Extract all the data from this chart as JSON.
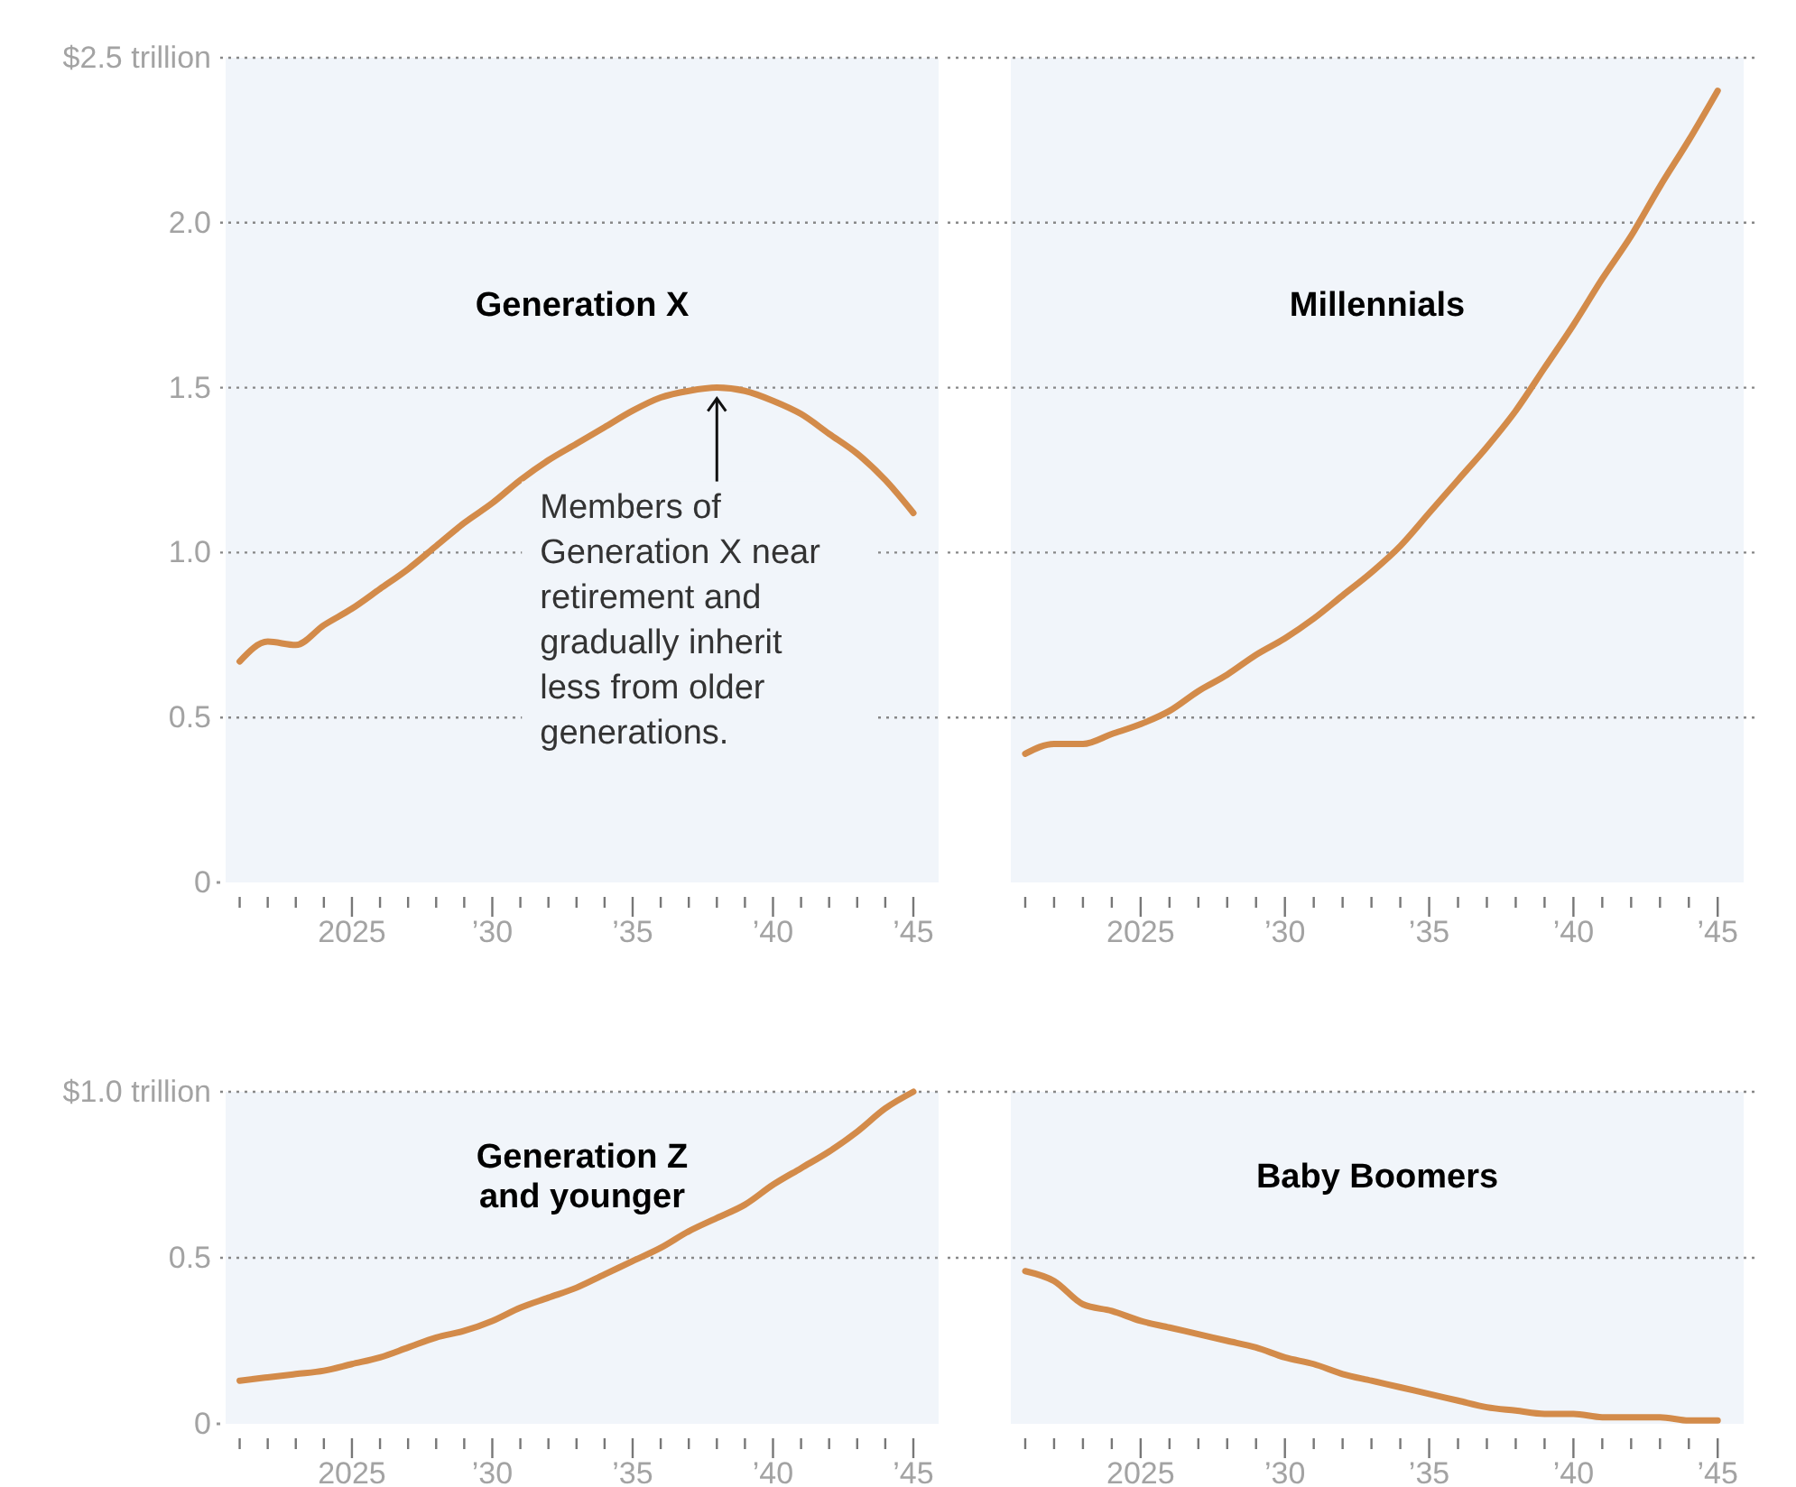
{
  "chart_data": [
    {
      "type": "line",
      "title": "Generation X",
      "x": [
        2021,
        2022,
        2023,
        2024,
        2025,
        2026,
        2027,
        2028,
        2029,
        2030,
        2031,
        2032,
        2033,
        2034,
        2035,
        2036,
        2037,
        2038,
        2039,
        2040,
        2041,
        2042,
        2043,
        2044,
        2045
      ],
      "series": [
        {
          "color": "#d38b4a",
          "values": [
            0.67,
            0.73,
            0.72,
            0.78,
            0.83,
            0.89,
            0.95,
            1.02,
            1.09,
            1.15,
            1.22,
            1.28,
            1.33,
            1.38,
            1.43,
            1.47,
            1.49,
            1.5,
            1.49,
            1.46,
            1.42,
            1.36,
            1.3,
            1.22,
            1.12
          ]
        }
      ],
      "xlim": [
        2020.5,
        2045.9
      ],
      "ylim": [
        0,
        2.5
      ],
      "xticks": [
        {
          "value": 2021,
          "label": null
        },
        {
          "value": 2022,
          "label": null
        },
        {
          "value": 2023,
          "label": null
        },
        {
          "value": 2024,
          "label": null
        },
        {
          "value": 2025,
          "label": "2025"
        },
        {
          "value": 2026,
          "label": null
        },
        {
          "value": 2027,
          "label": null
        },
        {
          "value": 2028,
          "label": null
        },
        {
          "value": 2029,
          "label": null
        },
        {
          "value": 2030,
          "label": "’30"
        },
        {
          "value": 2031,
          "label": null
        },
        {
          "value": 2032,
          "label": null
        },
        {
          "value": 2033,
          "label": null
        },
        {
          "value": 2034,
          "label": null
        },
        {
          "value": 2035,
          "label": "’35"
        },
        {
          "value": 2036,
          "label": null
        },
        {
          "value": 2037,
          "label": null
        },
        {
          "value": 2038,
          "label": null
        },
        {
          "value": 2039,
          "label": null
        },
        {
          "value": 2040,
          "label": "’40"
        },
        {
          "value": 2041,
          "label": null
        },
        {
          "value": 2042,
          "label": null
        },
        {
          "value": 2043,
          "label": null
        },
        {
          "value": 2044,
          "label": null
        },
        {
          "value": 2045,
          "label": "’45"
        }
      ],
      "yticks": [
        0,
        0.5,
        {
          "value": 1,
          "label": "1.0"
        },
        1.5,
        {
          "value": 2,
          "label": "2.0"
        },
        {
          "value": 2.5,
          "label": "$2.5 trillion"
        }
      ],
      "grid": "y",
      "annotations": [
        {
          "text": "Members of Generation X near retirement and gradually inherit less from older generations.",
          "x": 2038,
          "y": 1.5
        }
      ]
    },
    {
      "type": "line",
      "title": "Millennials",
      "x": [
        2021,
        2022,
        2023,
        2024,
        2025,
        2026,
        2027,
        2028,
        2029,
        2030,
        2031,
        2032,
        2033,
        2034,
        2035,
        2036,
        2037,
        2038,
        2039,
        2040,
        2041,
        2042,
        2043,
        2044,
        2045
      ],
      "series": [
        {
          "color": "#d38b4a",
          "values": [
            0.39,
            0.42,
            0.42,
            0.45,
            0.48,
            0.52,
            0.58,
            0.63,
            0.69,
            0.74,
            0.8,
            0.87,
            0.94,
            1.02,
            1.12,
            1.22,
            1.32,
            1.43,
            1.56,
            1.69,
            1.83,
            1.96,
            2.11,
            2.25,
            2.4
          ]
        }
      ],
      "xlim": [
        2020.5,
        2045.9
      ],
      "ylim": [
        0,
        2.5
      ],
      "xticks": [
        {
          "value": 2021,
          "label": null
        },
        {
          "value": 2022,
          "label": null
        },
        {
          "value": 2023,
          "label": null
        },
        {
          "value": 2024,
          "label": null
        },
        {
          "value": 2025,
          "label": "2025"
        },
        {
          "value": 2026,
          "label": null
        },
        {
          "value": 2027,
          "label": null
        },
        {
          "value": 2028,
          "label": null
        },
        {
          "value": 2029,
          "label": null
        },
        {
          "value": 2030,
          "label": "’30"
        },
        {
          "value": 2031,
          "label": null
        },
        {
          "value": 2032,
          "label": null
        },
        {
          "value": 2033,
          "label": null
        },
        {
          "value": 2034,
          "label": null
        },
        {
          "value": 2035,
          "label": "’35"
        },
        {
          "value": 2036,
          "label": null
        },
        {
          "value": 2037,
          "label": null
        },
        {
          "value": 2038,
          "label": null
        },
        {
          "value": 2039,
          "label": null
        },
        {
          "value": 2040,
          "label": "’40"
        },
        {
          "value": 2041,
          "label": null
        },
        {
          "value": 2042,
          "label": null
        },
        {
          "value": 2043,
          "label": null
        },
        {
          "value": 2044,
          "label": null
        },
        {
          "value": 2045,
          "label": "’45"
        }
      ],
      "yticks": [
        0,
        0.5,
        1,
        1.5,
        2,
        2.5
      ],
      "grid": "y",
      "tick_labels": "x"
    },
    {
      "type": "line",
      "title": "Generation Z and younger",
      "x": [
        2021,
        2022,
        2023,
        2024,
        2025,
        2026,
        2027,
        2028,
        2029,
        2030,
        2031,
        2032,
        2033,
        2034,
        2035,
        2036,
        2037,
        2038,
        2039,
        2040,
        2041,
        2042,
        2043,
        2044,
        2045
      ],
      "series": [
        {
          "color": "#d38b4a",
          "values": [
            0.13,
            0.14,
            0.15,
            0.16,
            0.18,
            0.2,
            0.23,
            0.26,
            0.28,
            0.31,
            0.35,
            0.38,
            0.41,
            0.45,
            0.49,
            0.53,
            0.58,
            0.62,
            0.66,
            0.72,
            0.77,
            0.82,
            0.88,
            0.95,
            1.0
          ]
        }
      ],
      "xlim": [
        2020.5,
        2045.9
      ],
      "ylim": [
        0,
        1
      ],
      "xticks": [
        {
          "value": 2021,
          "label": null
        },
        {
          "value": 2022,
          "label": null
        },
        {
          "value": 2023,
          "label": null
        },
        {
          "value": 2024,
          "label": null
        },
        {
          "value": 2025,
          "label": "2025"
        },
        {
          "value": 2026,
          "label": null
        },
        {
          "value": 2027,
          "label": null
        },
        {
          "value": 2028,
          "label": null
        },
        {
          "value": 2029,
          "label": null
        },
        {
          "value": 2030,
          "label": "’30"
        },
        {
          "value": 2031,
          "label": null
        },
        {
          "value": 2032,
          "label": null
        },
        {
          "value": 2033,
          "label": null
        },
        {
          "value": 2034,
          "label": null
        },
        {
          "value": 2035,
          "label": "’35"
        },
        {
          "value": 2036,
          "label": null
        },
        {
          "value": 2037,
          "label": null
        },
        {
          "value": 2038,
          "label": null
        },
        {
          "value": 2039,
          "label": null
        },
        {
          "value": 2040,
          "label": "’40"
        },
        {
          "value": 2041,
          "label": null
        },
        {
          "value": 2042,
          "label": null
        },
        {
          "value": 2043,
          "label": null
        },
        {
          "value": 2044,
          "label": null
        },
        {
          "value": 2045,
          "label": "’45"
        }
      ],
      "yticks": [
        0,
        0.5,
        {
          "value": 1,
          "label": "$1.0 trillion"
        }
      ],
      "grid": "y"
    },
    {
      "type": "line",
      "title": "Baby Boomers",
      "x": [
        2021,
        2022,
        2023,
        2024,
        2025,
        2026,
        2027,
        2028,
        2029,
        2030,
        2031,
        2032,
        2033,
        2034,
        2035,
        2036,
        2037,
        2038,
        2039,
        2040,
        2041,
        2042,
        2043,
        2044,
        2045
      ],
      "series": [
        {
          "color": "#d38b4a",
          "values": [
            0.46,
            0.43,
            0.36,
            0.34,
            0.31,
            0.29,
            0.27,
            0.25,
            0.23,
            0.2,
            0.18,
            0.15,
            0.13,
            0.11,
            0.09,
            0.07,
            0.05,
            0.04,
            0.03,
            0.03,
            0.02,
            0.02,
            0.02,
            0.01,
            0.01
          ]
        }
      ],
      "xlim": [
        2020.5,
        2045.9
      ],
      "ylim": [
        0,
        1
      ],
      "xticks": [
        {
          "value": 2021,
          "label": null
        },
        {
          "value": 2022,
          "label": null
        },
        {
          "value": 2023,
          "label": null
        },
        {
          "value": 2024,
          "label": null
        },
        {
          "value": 2025,
          "label": "2025"
        },
        {
          "value": 2026,
          "label": null
        },
        {
          "value": 2027,
          "label": null
        },
        {
          "value": 2028,
          "label": null
        },
        {
          "value": 2029,
          "label": null
        },
        {
          "value": 2030,
          "label": "’30"
        },
        {
          "value": 2031,
          "label": null
        },
        {
          "value": 2032,
          "label": null
        },
        {
          "value": 2033,
          "label": null
        },
        {
          "value": 2034,
          "label": null
        },
        {
          "value": 2035,
          "label": "’35"
        },
        {
          "value": 2036,
          "label": null
        },
        {
          "value": 2037,
          "label": null
        },
        {
          "value": 2038,
          "label": null
        },
        {
          "value": 2039,
          "label": null
        },
        {
          "value": 2040,
          "label": "’40"
        },
        {
          "value": 2041,
          "label": null
        },
        {
          "value": 2042,
          "label": null
        },
        {
          "value": 2043,
          "label": null
        },
        {
          "value": 2044,
          "label": null
        },
        {
          "value": 2045,
          "label": "’45"
        }
      ],
      "yticks": [
        0,
        0.5,
        1
      ],
      "grid": "y",
      "tick_labels": "x"
    }
  ]
}
